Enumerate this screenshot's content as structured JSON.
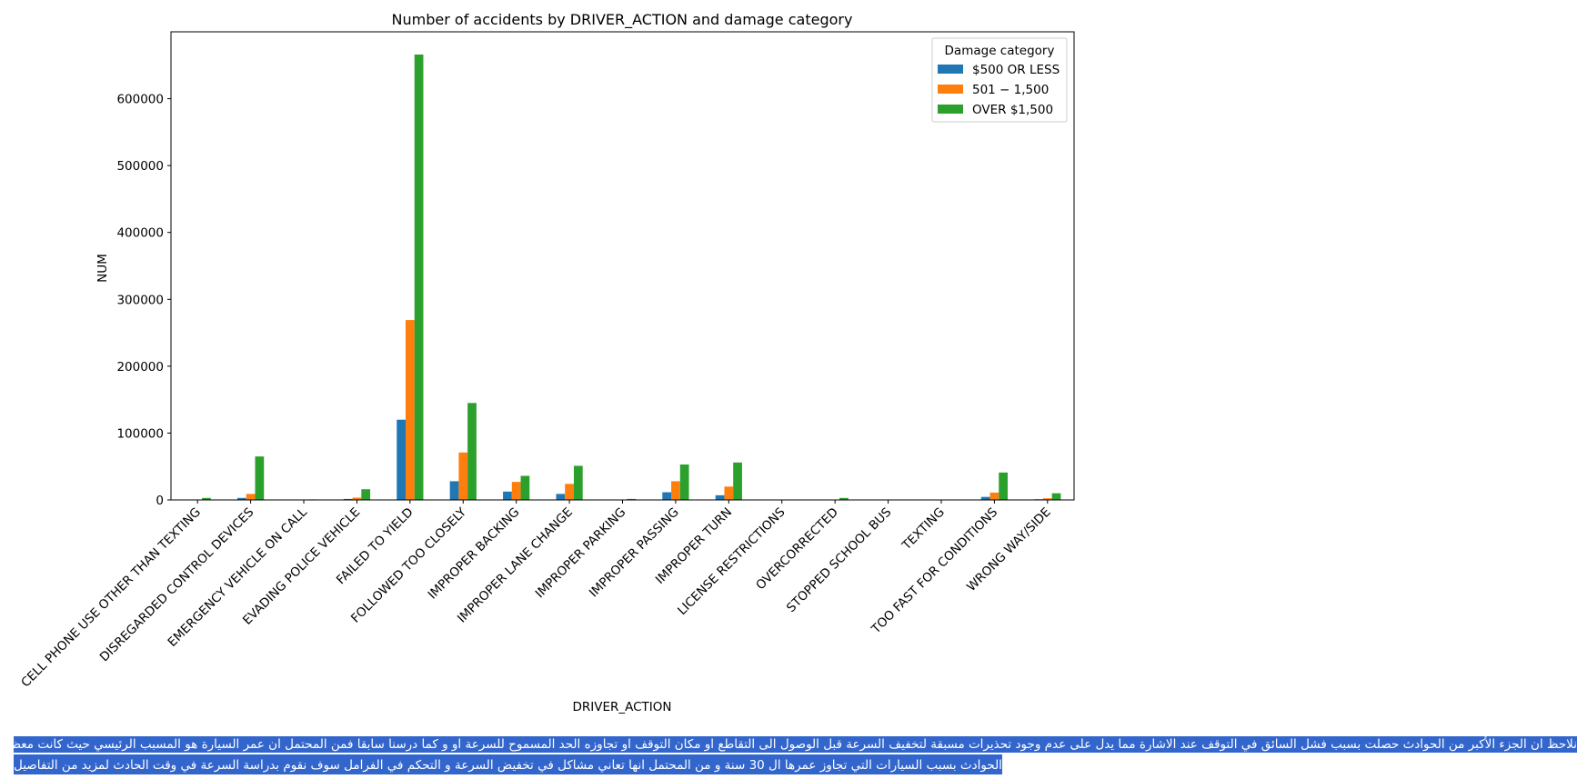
{
  "chart_data": {
    "type": "bar",
    "title": "Number of accidents by DRIVER_ACTION and damage category",
    "xlabel": "DRIVER_ACTION",
    "ylabel": "NUM",
    "ylim": [
      0,
      700000
    ],
    "yticks": [
      0,
      100000,
      200000,
      300000,
      400000,
      500000,
      600000
    ],
    "grid": false,
    "legend_title": "Damage category",
    "legend_position": "top-right",
    "categories": [
      "CELL PHONE USE OTHER THAN TEXTING",
      "DISREGARDED CONTROL DEVICES",
      "EMERGENCY VEHICLE ON CALL",
      "EVADING POLICE VEHICLE",
      "FAILED TO YIELD",
      "FOLLOWED TOO CLOSELY",
      "IMPROPER BACKING",
      "IMPROPER LANE CHANGE",
      "IMPROPER PARKING",
      "IMPROPER PASSING",
      "IMPROPER TURN",
      "LICENSE RESTRICTIONS",
      "OVERCORRECTED",
      "STOPPED SCHOOL BUS",
      "TEXTING",
      "TOO FAST FOR CONDITIONS",
      "WRONG WAY/SIDE"
    ],
    "series": [
      {
        "name": "$500 OR LESS",
        "color": "#1f77b4",
        "values": [
          300,
          3000,
          100,
          1500,
          120000,
          28000,
          12500,
          9000,
          300,
          11500,
          7000,
          50,
          300,
          50,
          50,
          4500,
          1000
        ]
      },
      {
        "name": "$501 - $1,500",
        "color": "#ff7f0e",
        "values": [
          700,
          9000,
          200,
          3500,
          269000,
          71000,
          27000,
          24000,
          600,
          28000,
          20000,
          100,
          700,
          100,
          100,
          11000,
          2500
        ]
      },
      {
        "name": "OVER $1,500",
        "color": "#2ca02c",
        "values": [
          3000,
          65000,
          800,
          16000,
          666000,
          145000,
          36000,
          51000,
          1500,
          53000,
          56000,
          300,
          3000,
          300,
          300,
          41000,
          10000
        ]
      }
    ],
    "legend_labels": [
      "$500 OR LESS",
      "501 − 1,500",
      "OVER $1,500"
    ]
  },
  "notes": {
    "line1": "نلاحظ ان الجزء الأكبر من الحوادث حصلت بسبب فشل السائق في التوقف عند الاشارة مما يدل على عدم وجود تحذيرات مسبقة لتخفيف السرعة قبل الوصول الى التقاطع او مكان التوقف او تجاوزه الحد المسموح للسرعة او و كما درسنا سابقا فمن المحتمل ان عمر السيارة هو المسبب الرئيسي حيث كانت معظم",
    "line2": "الحوادث بسبب السيارات التي تجاوز عمرها ال 30 سنة و من المحتمل انها تعاني مشاكل في تخفيض السرعة و التحكم في الفرامل سوف نقوم بدراسة السرعة في وقت الحادث لمزيد من التفاصيل"
  }
}
